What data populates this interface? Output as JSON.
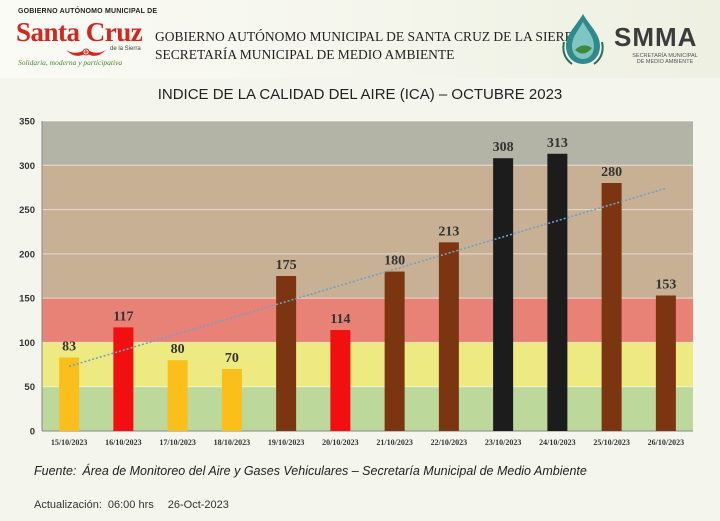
{
  "header": {
    "logo_left_top": "GOBIERNO AUTÓNOMO MUNICIPAL DE",
    "logo_left_main": "Santa Cruz",
    "logo_left_sub": "de la Sierra",
    "logo_left_slogan": "Solidaria, moderna y participativa",
    "line1": "GOBIERNO AUTÓNOMO MUNICIPAL DE SANTA CRUZ DE LA SIERRA",
    "line2": "SECRETARÍA MUNICIPAL DE MEDIO AMBIENTE",
    "logo_right_word": "SMMA",
    "logo_right_sub1": "SECRETARÍA MUNICIPAL",
    "logo_right_sub2": "DE MEDIO AMBIENTE"
  },
  "chart_data": {
    "type": "bar",
    "title": "INDICE DE LA CALIDAD DEL AIRE (ICA) – OCTUBRE 2023",
    "categories": [
      "15/10/2023",
      "16/10/2023",
      "17/10/2023",
      "18/10/2023",
      "19/10/2023",
      "20/10/2023",
      "21/10/2023",
      "22/10/2023",
      "23/10/2023",
      "24/10/2023",
      "25/10/2023",
      "26/10/2023"
    ],
    "values": [
      83,
      117,
      80,
      70,
      175,
      114,
      180,
      213,
      308,
      313,
      280,
      153
    ],
    "bar_colors": [
      "#fbbf1c",
      "#f20f0f",
      "#fbbf1c",
      "#fbbf1c",
      "#7c3511",
      "#f20f0f",
      "#7c3511",
      "#7c3511",
      "#1c1c1c",
      "#1c1c1c",
      "#7c3511",
      "#7c3511"
    ],
    "ylim": [
      0,
      350
    ],
    "yticks": [
      0,
      50,
      100,
      150,
      200,
      250,
      300,
      350
    ],
    "bands": [
      {
        "from": 0,
        "to": 50,
        "color": "#bcd89a"
      },
      {
        "from": 50,
        "to": 100,
        "color": "#eeea82"
      },
      {
        "from": 100,
        "to": 150,
        "color": "#e88276"
      },
      {
        "from": 150,
        "to": 300,
        "color": "#c8b094"
      },
      {
        "from": 300,
        "to": 350,
        "color": "#b3b4a6"
      }
    ],
    "trendline": {
      "from_category": 0,
      "to_category": 11,
      "y_start": 73,
      "y_end": 274,
      "color": "#6fa2c8"
    },
    "grid": true
  },
  "footer": {
    "source_label": "Fuente:",
    "source_text": "Área de Monitoreo del Aire y Gases Vehiculares – Secretaría Municipal de Medio Ambiente",
    "update_label": "Actualización:",
    "update_time": "06:00 hrs",
    "update_date": "26-Oct-2023"
  }
}
